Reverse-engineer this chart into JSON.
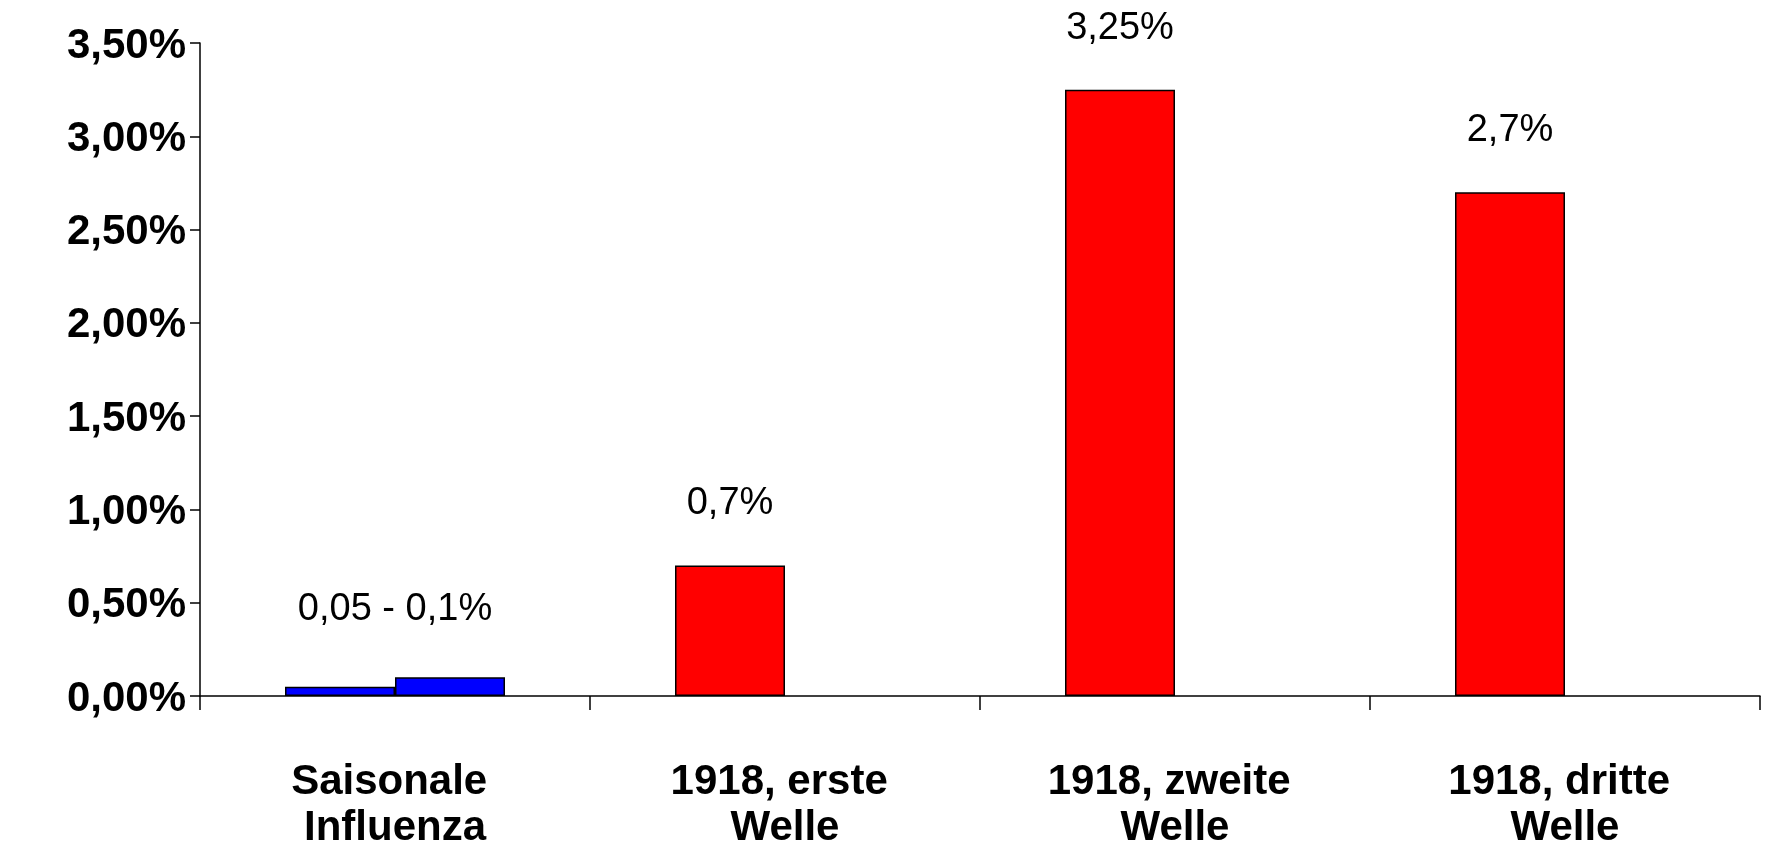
{
  "chart_data": {
    "type": "bar",
    "categories": [
      "Saisonale Influenza",
      "1918, erste Welle",
      "1918, zweite Welle",
      "1918, dritte Welle"
    ],
    "series": [
      {
        "colors": [
          "#0000ff",
          "#ff0000",
          "#ff0000",
          "#ff0000"
        ],
        "values": [
          0.05,
          0.7,
          3.25,
          2.7
        ],
        "value_labels": [
          null,
          "0,7%",
          "3,25%",
          "2,7%"
        ]
      },
      {
        "color": "#0000ff",
        "values": [
          0.1,
          null,
          null,
          null
        ]
      }
    ],
    "annotations": [
      "0,05 - 0,1%"
    ],
    "ylim": [
      0,
      3.5
    ],
    "yticks": [
      {
        "value": 0,
        "label": "0,00%"
      },
      {
        "value": 0.5,
        "label": "0,50%"
      },
      {
        "value": 1,
        "label": "1,00%"
      },
      {
        "value": 1.5,
        "label": "1,50%"
      },
      {
        "value": 2,
        "label": "2,00%"
      },
      {
        "value": 2.5,
        "label": "2,50%"
      },
      {
        "value": 3,
        "label": "3,00%"
      },
      {
        "value": 3.5,
        "label": "3,50%"
      }
    ]
  }
}
